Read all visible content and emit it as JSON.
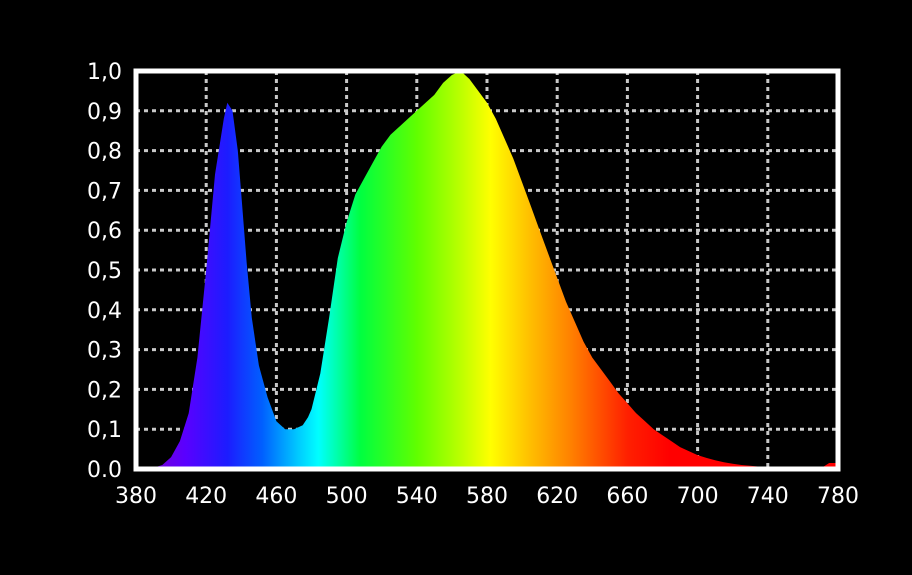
{
  "chart_data": {
    "type": "area",
    "title": "",
    "xlabel": "",
    "ylabel": "",
    "xlim": [
      380,
      780
    ],
    "ylim": [
      0.0,
      1.0
    ],
    "grid": true,
    "x_ticks": [
      "380",
      "420",
      "460",
      "500",
      "540",
      "580",
      "620",
      "660",
      "700",
      "740",
      "780"
    ],
    "y_ticks": [
      "0.0",
      "0,1",
      "0,2",
      "0,3",
      "0,4",
      "0,5",
      "0,6",
      "0,7",
      "0,8",
      "0,9",
      "1,0"
    ],
    "x": [
      380,
      385,
      390,
      395,
      400,
      405,
      410,
      415,
      420,
      425,
      430,
      432,
      435,
      438,
      440,
      443,
      446,
      450,
      455,
      460,
      465,
      470,
      475,
      478,
      480,
      485,
      490,
      495,
      500,
      505,
      510,
      515,
      520,
      525,
      530,
      535,
      540,
      545,
      550,
      555,
      560,
      565,
      570,
      575,
      580,
      585,
      590,
      595,
      600,
      605,
      610,
      615,
      620,
      625,
      630,
      635,
      640,
      645,
      650,
      655,
      660,
      665,
      670,
      675,
      680,
      685,
      690,
      695,
      700,
      705,
      710,
      715,
      720,
      725,
      730,
      735,
      740,
      745,
      750,
      755,
      760,
      765,
      770,
      775,
      780
    ],
    "y": [
      0.0,
      0.0,
      0.003,
      0.01,
      0.03,
      0.07,
      0.14,
      0.28,
      0.5,
      0.74,
      0.88,
      0.92,
      0.9,
      0.8,
      0.69,
      0.52,
      0.38,
      0.26,
      0.18,
      0.12,
      0.1,
      0.1,
      0.11,
      0.13,
      0.15,
      0.24,
      0.38,
      0.53,
      0.62,
      0.69,
      0.73,
      0.77,
      0.81,
      0.84,
      0.86,
      0.88,
      0.9,
      0.92,
      0.94,
      0.97,
      0.99,
      1.0,
      0.98,
      0.95,
      0.92,
      0.88,
      0.83,
      0.78,
      0.72,
      0.66,
      0.6,
      0.54,
      0.48,
      0.42,
      0.37,
      0.32,
      0.28,
      0.25,
      0.22,
      0.19,
      0.165,
      0.14,
      0.12,
      0.1,
      0.085,
      0.07,
      0.055,
      0.045,
      0.035,
      0.028,
      0.022,
      0.017,
      0.013,
      0.01,
      0.008,
      0.006,
      0.005,
      0.004,
      0.003,
      0.002,
      0.002,
      0.001,
      0.001,
      0.015,
      0.015
    ]
  }
}
